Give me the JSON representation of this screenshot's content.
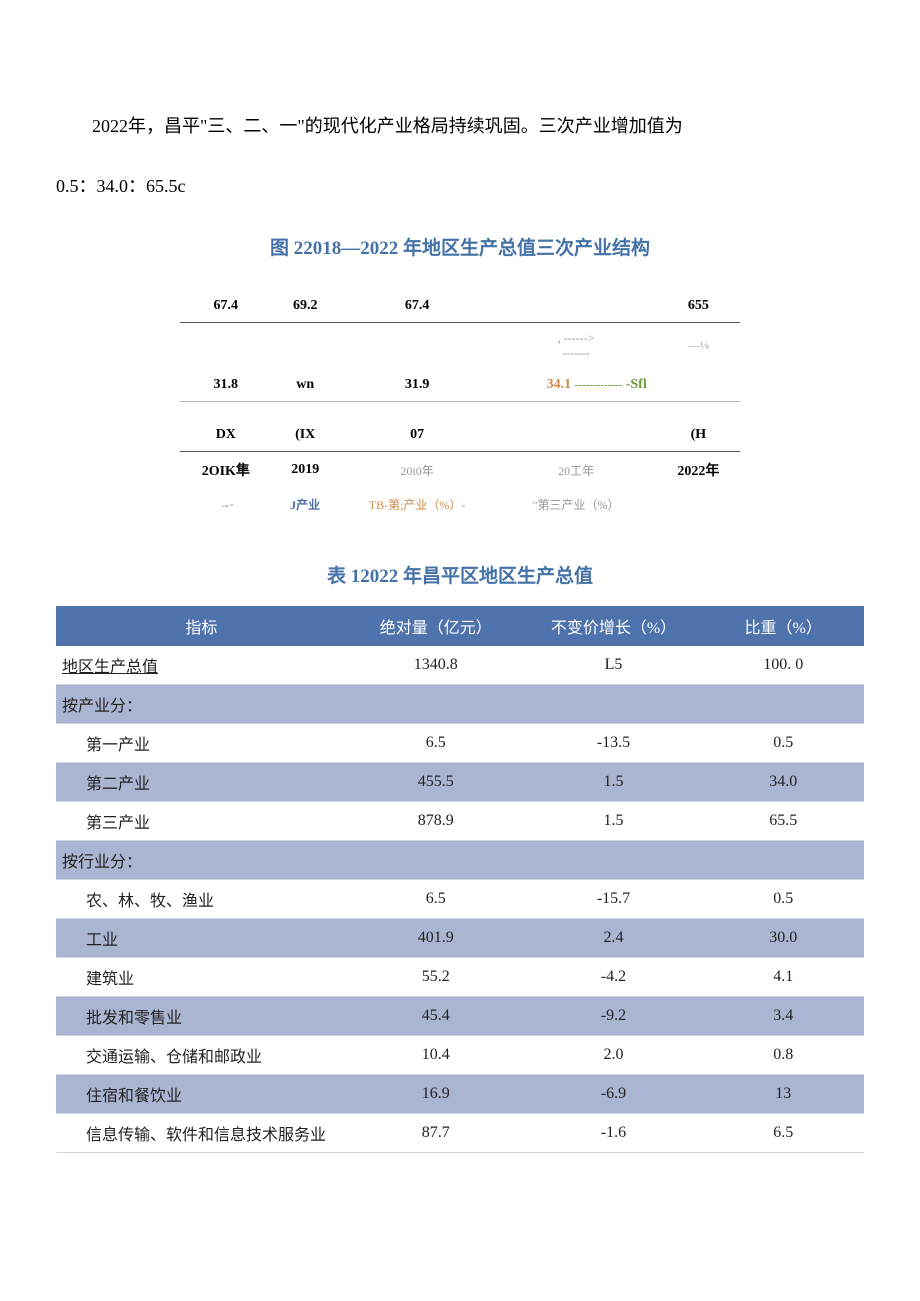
{
  "intro": {
    "line1": "2022年，昌平\"三、二、一\"的现代化产业格局持续巩固。三次产业增加值为",
    "line2": "0.5：34.0：65.5c"
  },
  "structure_chart": {
    "title": "图 22018—2022 年地区生产总值三次产业结构",
    "columns": [
      "2OIK隼",
      "2019",
      "20i0年",
      "20工年",
      "2022年"
    ],
    "tertiary": [
      "67.4",
      "69.2",
      "67.4",
      "",
      "655"
    ],
    "tertiary_right_note": "—⅛",
    "arrow_mid": ", ------>",
    "dash_mid": "-------",
    "secondary": [
      "31.8",
      "wn",
      "31.9",
      "34.1",
      "-Sfl"
    ],
    "primary": [
      "DX",
      "(IX",
      "07",
      "",
      "(H"
    ],
    "legend": [
      "J产业",
      "TB-第;产业（%）-",
      "\"第三产业（%）"
    ],
    "legend_arrow": "→-",
    "colors": {
      "tertiary": "#6e9b3a",
      "secondary": "#d08a4a",
      "primary": "#4a6fa5",
      "text": "#333333",
      "border": "#555555"
    },
    "font": {
      "label_size": 14,
      "small_size": 12,
      "weight_top": "bold"
    }
  },
  "gdp_table": {
    "title": "表 12022 年昌平区地区生产总值",
    "columns": [
      "指标",
      "绝对量（亿元）",
      "不变价增长（%）",
      "比重（%）"
    ],
    "header_bg": "#4e72ab",
    "header_fg": "#ffffff",
    "stripe_bg": "#aab5d1",
    "border_color": "#d0d6e4",
    "font": {
      "body_size": 16,
      "header_size": 16,
      "family": "SimSun"
    },
    "rows": [
      {
        "label": "地区生产总值",
        "abs": "1340.8",
        "growth": "L5",
        "weight": "100. 0",
        "stripe": false,
        "section": true,
        "indent": 0
      },
      {
        "label": "按产业分：",
        "abs": "",
        "growth": "",
        "weight": "",
        "stripe": true,
        "section": false,
        "indent": 0
      },
      {
        "label": "第一产业",
        "abs": "6.5",
        "growth": "-13.5",
        "weight": "0.5",
        "stripe": false,
        "section": false,
        "indent": 1
      },
      {
        "label": "第二产业",
        "abs": "455.5",
        "growth": "1.5",
        "weight": "34.0",
        "stripe": true,
        "section": false,
        "indent": 1
      },
      {
        "label": "第三产业",
        "abs": "878.9",
        "growth": "1.5",
        "weight": "65.5",
        "stripe": false,
        "section": false,
        "indent": 1
      },
      {
        "label": "按行业分：",
        "abs": "",
        "growth": "",
        "weight": "",
        "stripe": true,
        "section": false,
        "indent": 0
      },
      {
        "label": "农、林、牧、渔业",
        "abs": "6.5",
        "growth": "-15.7",
        "weight": "0.5",
        "stripe": false,
        "section": false,
        "indent": 1
      },
      {
        "label": "工业",
        "abs": "401.9",
        "growth": "2.4",
        "weight": "30.0",
        "stripe": true,
        "section": false,
        "indent": 1
      },
      {
        "label": "建筑业",
        "abs": "55.2",
        "growth": "-4.2",
        "weight": "4.1",
        "stripe": false,
        "section": false,
        "indent": 1
      },
      {
        "label": "批发和零售业",
        "abs": "45.4",
        "growth": "-9.2",
        "weight": "3.4",
        "stripe": true,
        "section": false,
        "indent": 1
      },
      {
        "label": "交通运输、仓储和邮政业",
        "abs": "10.4",
        "growth": "2.0",
        "weight": "0.8",
        "stripe": false,
        "section": false,
        "indent": 1
      },
      {
        "label": "住宿和餐饮业",
        "abs": "16.9",
        "growth": "-6.9",
        "weight": "13",
        "stripe": true,
        "section": false,
        "indent": 1
      },
      {
        "label": "信息传输、软件和信息技术服务业",
        "abs": "87.7",
        "growth": "-1.6",
        "weight": "6.5",
        "stripe": false,
        "section": false,
        "indent": 1
      }
    ]
  }
}
